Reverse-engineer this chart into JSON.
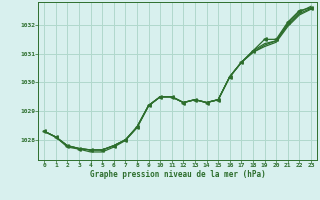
{
  "xlabel": "Graphe pression niveau de la mer (hPa)",
  "background_color": "#d8f0ee",
  "grid_color": "#b0d8cc",
  "line_color": "#2d6e2d",
  "text_color": "#2d6e2d",
  "x_ticks": [
    0,
    1,
    2,
    3,
    4,
    5,
    6,
    7,
    8,
    9,
    10,
    11,
    12,
    13,
    14,
    15,
    16,
    17,
    18,
    19,
    20,
    21,
    22,
    23
  ],
  "ylim": [
    1027.3,
    1032.8
  ],
  "yticks": [
    1028,
    1029,
    1030,
    1031,
    1032
  ],
  "series": [
    [
      1028.3,
      1028.1,
      1027.8,
      1027.7,
      1027.65,
      1027.65,
      1027.8,
      1028.0,
      1028.45,
      1029.2,
      1029.5,
      1029.5,
      1029.3,
      1029.4,
      1029.3,
      1029.4,
      1030.2,
      1030.7,
      1031.1,
      1031.5,
      1031.5,
      1032.1,
      1032.5,
      1032.6
    ],
    [
      1028.3,
      1028.1,
      1027.8,
      1027.7,
      1027.65,
      1027.65,
      1027.8,
      1028.0,
      1028.45,
      1029.2,
      1029.5,
      1029.5,
      1029.3,
      1029.4,
      1029.3,
      1029.4,
      1030.2,
      1030.7,
      1031.1,
      1031.35,
      1031.45,
      1032.05,
      1032.45,
      1032.65
    ],
    [
      1028.3,
      1028.1,
      1027.8,
      1027.7,
      1027.65,
      1027.65,
      1027.8,
      1028.0,
      1028.45,
      1029.2,
      1029.5,
      1029.5,
      1029.3,
      1029.4,
      1029.3,
      1029.4,
      1030.2,
      1030.7,
      1031.05,
      1031.3,
      1031.45,
      1032.0,
      1032.4,
      1032.58
    ],
    [
      1028.3,
      1028.1,
      1027.75,
      1027.68,
      1027.58,
      1027.58,
      1027.75,
      1027.98,
      1028.42,
      1029.18,
      1029.5,
      1029.5,
      1029.3,
      1029.4,
      1029.3,
      1029.4,
      1030.2,
      1030.7,
      1031.05,
      1031.25,
      1031.4,
      1031.95,
      1032.35,
      1032.55
    ]
  ],
  "has_markers": [
    true,
    false,
    false,
    false
  ]
}
